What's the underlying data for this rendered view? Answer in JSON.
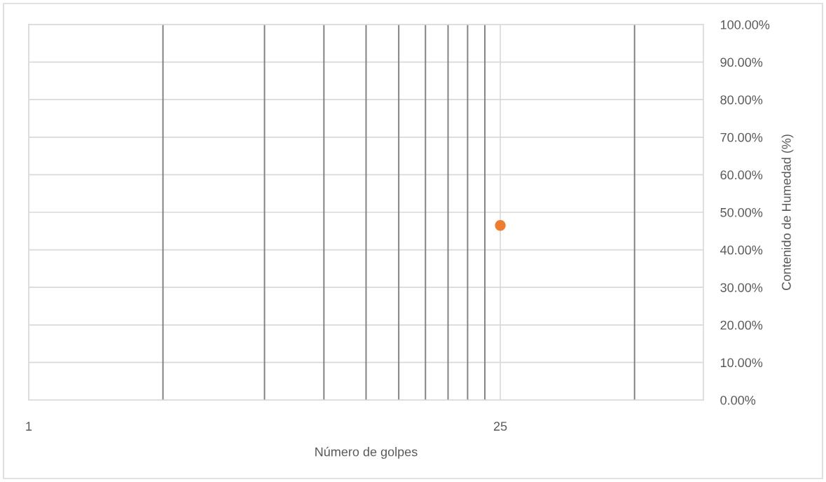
{
  "chart_data": {
    "type": "scatter",
    "xlabel": "Número de golpes",
    "y2label": "Contenido de Humedad (%)",
    "log": "x",
    "grid": true,
    "marker": "circle",
    "xlim": [
      1,
      100
    ],
    "xticks": [
      1,
      25
    ],
    "y2lim": [
      0,
      100
    ],
    "y2ticks": [
      {
        "value": 0,
        "label": "0.00%"
      },
      {
        "value": 10,
        "label": "10.00%"
      },
      {
        "value": 20,
        "label": "20.00%"
      },
      {
        "value": 30,
        "label": "30.00%"
      },
      {
        "value": 40,
        "label": "40.00%"
      },
      {
        "value": 50,
        "label": "50.00%"
      },
      {
        "value": 60,
        "label": "60.00%"
      },
      {
        "value": 70,
        "label": "70.00%"
      },
      {
        "value": 80,
        "label": "80.00%"
      },
      {
        "value": 90,
        "label": "90.00%"
      },
      {
        "value": 100,
        "label": "100.00%"
      }
    ],
    "series": [
      {
        "color": "#ed7d31",
        "axis": "y2",
        "x": [
          25
        ],
        "values": [
          46.5
        ]
      }
    ],
    "ref_lines": [
      {
        "axis": "x",
        "value": 2.5,
        "color": "#808080"
      },
      {
        "axis": "x",
        "value": 5,
        "color": "#808080"
      },
      {
        "axis": "x",
        "value": 7.5,
        "color": "#808080"
      },
      {
        "axis": "x",
        "value": 10,
        "color": "#808080"
      },
      {
        "axis": "x",
        "value": 12.5,
        "color": "#808080"
      },
      {
        "axis": "x",
        "value": 15,
        "color": "#808080"
      },
      {
        "axis": "x",
        "value": 17.5,
        "color": "#808080"
      },
      {
        "axis": "x",
        "value": 20,
        "color": "#808080"
      },
      {
        "axis": "x",
        "value": 22.5,
        "color": "#808080"
      },
      {
        "axis": "x",
        "value": 62.5,
        "color": "#808080"
      }
    ]
  }
}
